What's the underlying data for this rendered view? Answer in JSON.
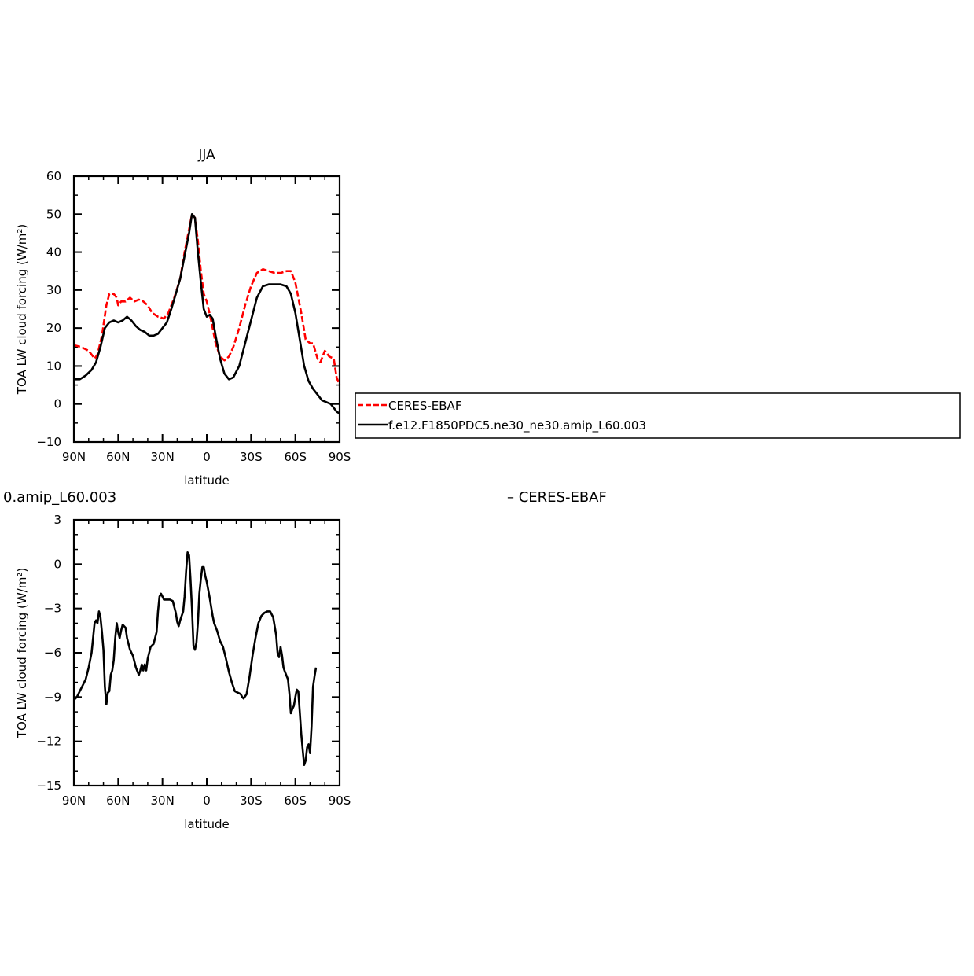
{
  "chart_data": [
    {
      "type": "line",
      "title": "JJA",
      "xlabel": "latitude",
      "ylabel": "TOA LW cloud forcing (W/m²)",
      "xlim": [
        90,
        -90
      ],
      "ylim": [
        -10,
        60
      ],
      "x_ticks": [
        {
          "value": 90,
          "label": "90N"
        },
        {
          "value": 60,
          "label": "60N"
        },
        {
          "value": 30,
          "label": "30N"
        },
        {
          "value": 0,
          "label": "0"
        },
        {
          "value": -30,
          "label": "30S"
        },
        {
          "value": -60,
          "label": "60S"
        },
        {
          "value": -90,
          "label": "90S"
        }
      ],
      "y_ticks": [
        -10,
        0,
        10,
        20,
        30,
        40,
        50,
        60
      ],
      "grid": false,
      "legend_position": "right",
      "series": [
        {
          "name": "CERES-EBAF",
          "color": "#ff0000",
          "dash": true,
          "points": [
            [
              90,
              15.5
            ],
            [
              85,
              15
            ],
            [
              80,
              14
            ],
            [
              76,
              12
            ],
            [
              74,
              13
            ],
            [
              71,
              18
            ],
            [
              68,
              26
            ],
            [
              66,
              29
            ],
            [
              63,
              29
            ],
            [
              61,
              28
            ],
            [
              60,
              26
            ],
            [
              58,
              27
            ],
            [
              55,
              27
            ],
            [
              52,
              28
            ],
            [
              49,
              27
            ],
            [
              46,
              27.5
            ],
            [
              43,
              27
            ],
            [
              40,
              26
            ],
            [
              37,
              24
            ],
            [
              33,
              23
            ],
            [
              29,
              22.5
            ],
            [
              26,
              24
            ],
            [
              22,
              28
            ],
            [
              18,
              33
            ],
            [
              15,
              40
            ],
            [
              12,
              46
            ],
            [
              10,
              50
            ],
            [
              8,
              49
            ],
            [
              6,
              43
            ],
            [
              4,
              35
            ],
            [
              2,
              29
            ],
            [
              0,
              27
            ],
            [
              -3,
              22
            ],
            [
              -6,
              16
            ],
            [
              -9,
              12.5
            ],
            [
              -12,
              11.5
            ],
            [
              -15,
              12.5
            ],
            [
              -18,
              15
            ],
            [
              -22,
              20
            ],
            [
              -26,
              26
            ],
            [
              -30,
              31
            ],
            [
              -34,
              34.5
            ],
            [
              -38,
              35.5
            ],
            [
              -42,
              35
            ],
            [
              -46,
              34.5
            ],
            [
              -50,
              34.5
            ],
            [
              -54,
              35
            ],
            [
              -57,
              35
            ],
            [
              -60,
              32
            ],
            [
              -64,
              24
            ],
            [
              -67,
              17
            ],
            [
              -70,
              16
            ],
            [
              -72,
              16
            ],
            [
              -75,
              12
            ],
            [
              -77,
              11
            ],
            [
              -80,
              14
            ],
            [
              -83,
              12.5
            ],
            [
              -86,
              12
            ],
            [
              -88,
              7
            ],
            [
              -90,
              5
            ]
          ]
        },
        {
          "name": "f.e12.F1850PDC5.ne30_ne30.amip_L60.003",
          "color": "#000000",
          "dash": false,
          "points": [
            [
              90,
              6.5
            ],
            [
              86,
              6.5
            ],
            [
              82,
              7.5
            ],
            [
              78,
              9
            ],
            [
              75,
              11
            ],
            [
              72,
              15
            ],
            [
              69,
              20
            ],
            [
              66,
              21.5
            ],
            [
              63,
              22
            ],
            [
              60,
              21.5
            ],
            [
              57,
              22
            ],
            [
              54,
              23
            ],
            [
              51,
              22
            ],
            [
              48,
              20.5
            ],
            [
              45,
              19.5
            ],
            [
              42,
              19
            ],
            [
              39,
              18
            ],
            [
              36,
              18
            ],
            [
              33,
              18.5
            ],
            [
              30,
              20
            ],
            [
              27,
              21.5
            ],
            [
              24,
              25
            ],
            [
              21,
              29
            ],
            [
              18,
              33
            ],
            [
              15,
              39
            ],
            [
              12,
              45
            ],
            [
              10,
              50
            ],
            [
              8,
              49
            ],
            [
              6,
              40
            ],
            [
              4,
              32
            ],
            [
              2,
              25
            ],
            [
              0,
              23
            ],
            [
              -2,
              23.5
            ],
            [
              -4,
              22.5
            ],
            [
              -6,
              18
            ],
            [
              -9,
              12
            ],
            [
              -12,
              8
            ],
            [
              -15,
              6.5
            ],
            [
              -18,
              7
            ],
            [
              -22,
              10
            ],
            [
              -26,
              16
            ],
            [
              -30,
              22
            ],
            [
              -34,
              28
            ],
            [
              -38,
              31
            ],
            [
              -42,
              31.5
            ],
            [
              -46,
              31.5
            ],
            [
              -50,
              31.5
            ],
            [
              -54,
              31
            ],
            [
              -57,
              29
            ],
            [
              -60,
              24
            ],
            [
              -63,
              17
            ],
            [
              -66,
              10
            ],
            [
              -69,
              6
            ],
            [
              -72,
              4
            ],
            [
              -75,
              2.5
            ],
            [
              -78,
              1
            ],
            [
              -81,
              0.5
            ],
            [
              -84,
              0
            ],
            [
              -86,
              -1
            ],
            [
              -88,
              -2
            ],
            [
              -90,
              -2.5
            ]
          ]
        }
      ]
    },
    {
      "type": "line",
      "title": "0.amip_L60.003",
      "title_right": "– CERES-EBAF",
      "xlabel": "latitude",
      "ylabel": "TOA LW cloud forcing (W/m²)",
      "xlim": [
        90,
        -90
      ],
      "ylim": [
        -15,
        3
      ],
      "x_ticks": [
        {
          "value": 90,
          "label": "90N"
        },
        {
          "value": 60,
          "label": "60N"
        },
        {
          "value": 30,
          "label": "30N"
        },
        {
          "value": 0,
          "label": "0"
        },
        {
          "value": -30,
          "label": "30S"
        },
        {
          "value": -60,
          "label": "60S"
        },
        {
          "value": -90,
          "label": "90S"
        }
      ],
      "y_ticks": [
        -15,
        -12,
        -9,
        -6,
        -3,
        0,
        3
      ],
      "grid": false,
      "series": [
        {
          "color": "#000000",
          "dash": false,
          "points": [
            [
              90,
              -9.2
            ],
            [
              88,
              -9
            ],
            [
              86,
              -8.6
            ],
            [
              84,
              -8.2
            ],
            [
              82,
              -7.8
            ],
            [
              80,
              -7
            ],
            [
              78,
              -6
            ],
            [
              77,
              -5
            ],
            [
              76,
              -4
            ],
            [
              75,
              -3.8
            ],
            [
              74,
              -4
            ],
            [
              73,
              -3.2
            ],
            [
              72,
              -3.6
            ],
            [
              71,
              -4.6
            ],
            [
              70,
              -5.8
            ],
            [
              69,
              -8.3
            ],
            [
              68,
              -9.5
            ],
            [
              67,
              -8.7
            ],
            [
              66,
              -8.6
            ],
            [
              65,
              -7.5
            ],
            [
              64,
              -7.2
            ],
            [
              63,
              -6.5
            ],
            [
              62,
              -5
            ],
            [
              61,
              -4
            ],
            [
              60,
              -4.6
            ],
            [
              59,
              -5
            ],
            [
              58,
              -4.5
            ],
            [
              57,
              -4.1
            ],
            [
              55,
              -4.3
            ],
            [
              54,
              -5
            ],
            [
              52,
              -5.8
            ],
            [
              50,
              -6.2
            ],
            [
              48,
              -7
            ],
            [
              46,
              -7.5
            ],
            [
              45,
              -7.2
            ],
            [
              44,
              -6.8
            ],
            [
              43,
              -7.2
            ],
            [
              42,
              -6.8
            ],
            [
              41,
              -7.2
            ],
            [
              40,
              -6.4
            ],
            [
              38,
              -5.6
            ],
            [
              36,
              -5.4
            ],
            [
              34,
              -4.6
            ],
            [
              33,
              -3.2
            ],
            [
              32,
              -2.2
            ],
            [
              31,
              -2
            ],
            [
              30,
              -2.2
            ],
            [
              29,
              -2.4
            ],
            [
              27,
              -2.4
            ],
            [
              25,
              -2.4
            ],
            [
              23,
              -2.5
            ],
            [
              22,
              -2.9
            ],
            [
              21,
              -3.3
            ],
            [
              20,
              -3.9
            ],
            [
              19,
              -4.2
            ],
            [
              18,
              -3.8
            ],
            [
              16,
              -3.2
            ],
            [
              15,
              -2.2
            ],
            [
              14,
              -0.5
            ],
            [
              13,
              0.8
            ],
            [
              12,
              0.6
            ],
            [
              11,
              -1
            ],
            [
              10,
              -3
            ],
            [
              9,
              -5.5
            ],
            [
              8,
              -5.8
            ],
            [
              7,
              -5.3
            ],
            [
              6,
              -4
            ],
            [
              5,
              -2
            ],
            [
              4,
              -1
            ],
            [
              3,
              -0.2
            ],
            [
              2,
              -0.2
            ],
            [
              1,
              -0.8
            ],
            [
              0,
              -1.2
            ],
            [
              -2,
              -2.3
            ],
            [
              -4,
              -3.5
            ],
            [
              -5,
              -4
            ],
            [
              -7,
              -4.5
            ],
            [
              -9,
              -5.2
            ],
            [
              -11,
              -5.6
            ],
            [
              -13,
              -6.4
            ],
            [
              -15,
              -7.3
            ],
            [
              -17,
              -8
            ],
            [
              -19,
              -8.6
            ],
            [
              -21,
              -8.7
            ],
            [
              -23,
              -8.8
            ],
            [
              -24,
              -9
            ],
            [
              -25,
              -9.1
            ],
            [
              -27,
              -8.8
            ],
            [
              -29,
              -7.6
            ],
            [
              -31,
              -6.2
            ],
            [
              -33,
              -5
            ],
            [
              -35,
              -4
            ],
            [
              -37,
              -3.5
            ],
            [
              -39,
              -3.3
            ],
            [
              -41,
              -3.2
            ],
            [
              -43,
              -3.2
            ],
            [
              -45,
              -3.6
            ],
            [
              -47,
              -4.8
            ],
            [
              -48,
              -6
            ],
            [
              -49,
              -6.3
            ],
            [
              -50,
              -5.6
            ],
            [
              -51,
              -6.2
            ],
            [
              -52,
              -7
            ],
            [
              -53,
              -7.3
            ],
            [
              -55,
              -7.8
            ],
            [
              -56,
              -8.8
            ],
            [
              -57,
              -10.1
            ],
            [
              -58,
              -9.8
            ],
            [
              -59,
              -9.6
            ],
            [
              -60,
              -9
            ],
            [
              -61,
              -8.5
            ],
            [
              -62,
              -8.6
            ],
            [
              -63,
              -10
            ],
            [
              -64,
              -11.5
            ],
            [
              -65,
              -12.6
            ],
            [
              -66,
              -13.6
            ],
            [
              -67,
              -13.3
            ],
            [
              -68,
              -12.4
            ],
            [
              -69,
              -12.2
            ],
            [
              -70,
              -12.8
            ],
            [
              -71,
              -11
            ],
            [
              -72,
              -8.3
            ],
            [
              -73,
              -7.6
            ],
            [
              -74,
              -7
            ]
          ]
        }
      ]
    }
  ],
  "legend": [
    {
      "label": "CERES-EBAF",
      "color": "#ff0000",
      "dash": true
    },
    {
      "label": "f.e12.F1850PDC5.ne30_ne30.amip_L60.003",
      "color": "#000000",
      "dash": false
    }
  ]
}
